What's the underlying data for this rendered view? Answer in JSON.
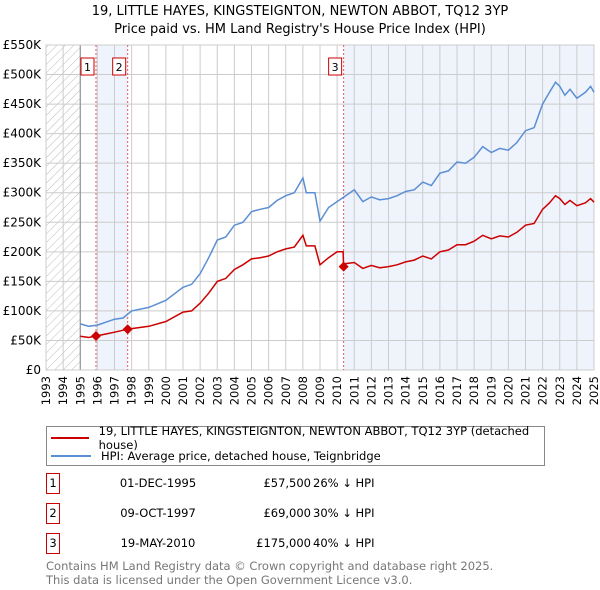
{
  "title_line1": "19, LITTLE HAYES, KINGSTEIGNTON, NEWTON ABBOT, TQ12 3YP",
  "title_line2": "Price paid vs. HM Land Registry's House Price Index (HPI)",
  "chart_data": {
    "type": "line",
    "xlim": [
      1993,
      2025
    ],
    "ylim": [
      0,
      550000
    ],
    "yticks": [
      0,
      50000,
      100000,
      150000,
      200000,
      250000,
      300000,
      350000,
      400000,
      450000,
      500000,
      550000
    ],
    "ytick_labels": [
      "£0",
      "£50K",
      "£100K",
      "£150K",
      "£200K",
      "£250K",
      "£300K",
      "£350K",
      "£400K",
      "£450K",
      "£500K",
      "£550K"
    ],
    "xticks": [
      1993,
      1994,
      1995,
      1996,
      1997,
      1998,
      1999,
      2000,
      2001,
      2002,
      2003,
      2004,
      2005,
      2006,
      2007,
      2008,
      2009,
      2010,
      2011,
      2012,
      2013,
      2014,
      2015,
      2016,
      2017,
      2018,
      2019,
      2020,
      2021,
      2022,
      2023,
      2024,
      2025
    ],
    "grid": true,
    "hatched_range": [
      1993,
      1995
    ],
    "shaded_ranges": [
      [
        1995.92,
        1997.77
      ],
      [
        2010.38,
        2025
      ]
    ],
    "series": [
      {
        "name": "19, LITTLE HAYES, KINGSTEIGNTON, NEWTON ABBOT, TQ12 3YP (detached house)",
        "color": "#cc0000",
        "x": [
          1995,
          1995.5,
          1995.92,
          1996.5,
          1997,
          1997.77,
          1998,
          1999,
          2000,
          2001,
          2001.5,
          2002,
          2002.5,
          2003,
          2003.5,
          2004,
          2004.5,
          2005,
          2005.5,
          2006,
          2006.5,
          2007,
          2007.5,
          2008,
          2008.2,
          2008.7,
          2009,
          2009.5,
          2010,
          2010.35,
          2010.38,
          2010.5,
          2011,
          2011.5,
          2012,
          2012.5,
          2013,
          2013.5,
          2014,
          2014.5,
          2015,
          2015.5,
          2016,
          2016.5,
          2017,
          2017.5,
          2018,
          2018.5,
          2019,
          2019.5,
          2020,
          2020.5,
          2021,
          2021.5,
          2022,
          2022.4,
          2022.75,
          2023,
          2023.3,
          2023.6,
          2024,
          2024.5,
          2024.8,
          2025
        ],
        "y": [
          57000,
          55000,
          57500,
          61000,
          64000,
          69000,
          70000,
          74000,
          82000,
          98000,
          100000,
          113000,
          130000,
          150000,
          155000,
          170000,
          178000,
          188000,
          190000,
          193000,
          200000,
          205000,
          208000,
          228000,
          210000,
          210000,
          178000,
          190000,
          200000,
          200000,
          175000,
          180000,
          182000,
          172000,
          177000,
          173000,
          175000,
          178000,
          183000,
          186000,
          193000,
          188000,
          200000,
          203000,
          212000,
          212000,
          218000,
          228000,
          222000,
          227000,
          225000,
          233000,
          245000,
          248000,
          272000,
          283000,
          295000,
          290000,
          280000,
          287000,
          278000,
          283000,
          290000,
          284000
        ]
      },
      {
        "name": "HPI: Average price, detached house, Teignbridge",
        "color": "#5b8fd4",
        "x": [
          1995,
          1995.5,
          1996,
          1997,
          1997.5,
          1998,
          1999,
          2000,
          2001,
          2001.5,
          2002,
          2002.5,
          2003,
          2003.5,
          2004,
          2004.5,
          2005,
          2005.5,
          2006,
          2006.5,
          2007,
          2007.5,
          2008,
          2008.2,
          2008.7,
          2009,
          2009.5,
          2010,
          2010.5,
          2011,
          2011.5,
          2012,
          2012.5,
          2013,
          2013.5,
          2014,
          2014.5,
          2015,
          2015.5,
          2016,
          2016.5,
          2017,
          2017.5,
          2018,
          2018.5,
          2019,
          2019.5,
          2020,
          2020.5,
          2021,
          2021.5,
          2022,
          2022.4,
          2022.75,
          2023,
          2023.3,
          2023.6,
          2024,
          2024.5,
          2024.8,
          2025
        ],
        "y": [
          78000,
          74000,
          76000,
          86000,
          88000,
          100000,
          106000,
          118000,
          140000,
          145000,
          163000,
          190000,
          220000,
          225000,
          245000,
          250000,
          268000,
          272000,
          275000,
          287000,
          295000,
          300000,
          325000,
          300000,
          300000,
          252000,
          275000,
          285000,
          295000,
          305000,
          285000,
          293000,
          288000,
          290000,
          295000,
          302000,
          305000,
          318000,
          312000,
          333000,
          337000,
          352000,
          350000,
          360000,
          378000,
          368000,
          375000,
          372000,
          385000,
          405000,
          410000,
          450000,
          470000,
          487000,
          480000,
          465000,
          475000,
          460000,
          470000,
          480000,
          470000
        ]
      }
    ],
    "sales": [
      {
        "label": "1",
        "x": 1995.92,
        "y": 57500,
        "date": "01-DEC-1995",
        "price": "£57,500",
        "hpi": "26% ↓ HPI"
      },
      {
        "label": "2",
        "x": 1997.77,
        "y": 69000,
        "date": "09-OCT-1997",
        "price": "£69,000",
        "hpi": "30% ↓ HPI"
      },
      {
        "label": "3",
        "x": 2010.38,
        "y": 175000,
        "date": "19-MAY-2010",
        "price": "£175,000",
        "hpi": "40% ↓ HPI"
      }
    ],
    "legend": [
      "19, LITTLE HAYES, KINGSTEIGNTON, NEWTON ABBOT, TQ12 3YP (detached house)",
      "HPI: Average price, detached house, Teignbridge"
    ],
    "legend_position": "below"
  },
  "footer": [
    "Contains HM Land Registry data © Crown copyright and database right 2025.",
    "This data is licensed under the Open Government Licence v3.0."
  ]
}
